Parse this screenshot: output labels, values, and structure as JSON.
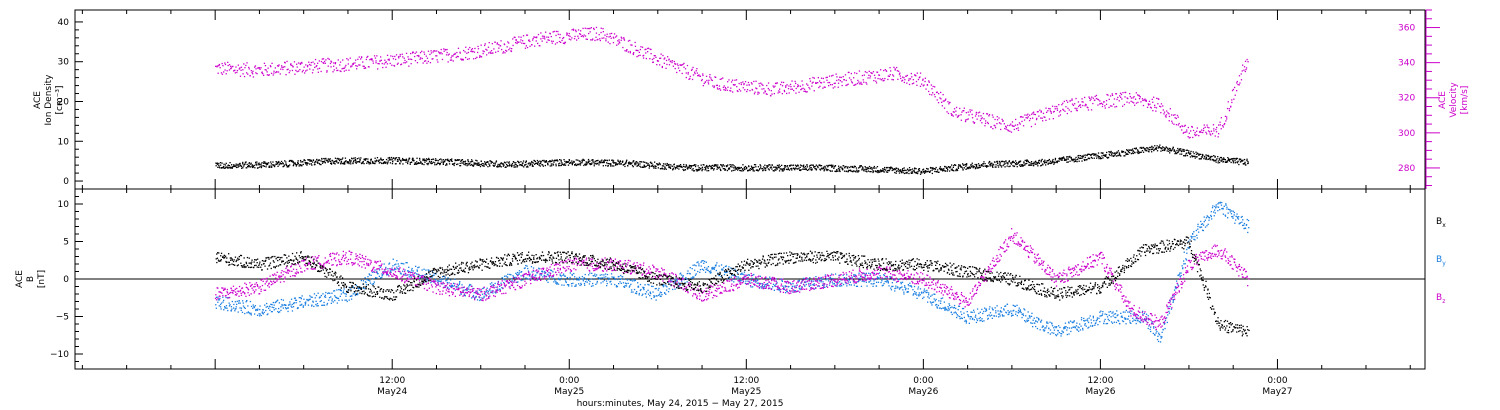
{
  "chart_data": [
    {
      "type": "scatter",
      "panel": "plasma",
      "left_axis": {
        "title_lines": [
          "ACE",
          "Ion Density",
          "[cm⁻³]"
        ],
        "ylim": [
          -2,
          43
        ],
        "ticks": [
          0,
          10,
          20,
          30,
          40
        ],
        "tick_labels": [
          "0",
          "10",
          "20",
          "30",
          "40"
        ]
      },
      "right_axis": {
        "title_lines": [
          "ACE",
          "Velocity",
          "[km/s]"
        ],
        "ylim": [
          268,
          370
        ],
        "ticks": [
          280,
          300,
          320,
          340,
          360
        ],
        "tick_labels": [
          "280",
          "300",
          "320",
          "340",
          "360"
        ],
        "color": "#cc00cc"
      },
      "series": [
        {
          "axis": "left",
          "color": "#000000",
          "t_hours": [
            0,
            4,
            8,
            12,
            16,
            20,
            24,
            28,
            32,
            36,
            40,
            44,
            48,
            52,
            56,
            60,
            62,
            64,
            66,
            68,
            70
          ],
          "values": [
            4,
            4.3,
            5.2,
            5.3,
            4.9,
            4.3,
            4.9,
            4.6,
            3.5,
            3.5,
            3.5,
            3.2,
            2.6,
            4.3,
            4.8,
            6.5,
            7.5,
            8.5,
            7,
            5.5,
            4.8
          ]
        },
        {
          "axis": "right",
          "color": "#cc00cc",
          "t_hours": [
            0,
            3,
            6,
            10,
            14,
            18,
            22,
            26,
            28,
            30,
            34,
            38,
            42,
            46,
            48,
            50,
            54,
            58,
            62,
            64,
            66,
            68,
            70
          ],
          "values": [
            337,
            336,
            338,
            340,
            343,
            347,
            354,
            357,
            350,
            342,
            328,
            325,
            330,
            334,
            330,
            312,
            304,
            316,
            320,
            316,
            300,
            302,
            343
          ]
        }
      ]
    },
    {
      "type": "scatter",
      "panel": "field",
      "left_axis": {
        "title_lines": [
          "ACE",
          "B",
          "[nT]"
        ],
        "ylim": [
          -12,
          12
        ],
        "ticks": [
          -10,
          -5,
          0,
          5,
          10
        ],
        "tick_labels": [
          "−10",
          "−5",
          "0",
          "5",
          "10"
        ]
      },
      "zero_line": true,
      "series": [
        {
          "name": "B",
          "subscript": "x",
          "color": "#000000",
          "t_hours": [
            0,
            3,
            6,
            9,
            12,
            15,
            18,
            21,
            24,
            27,
            30,
            33,
            36,
            39,
            42,
            45,
            48,
            51,
            54,
            57,
            60,
            63,
            66,
            68,
            70
          ],
          "values": [
            3,
            2,
            3,
            -1,
            -2,
            1,
            2,
            3,
            3,
            2,
            0,
            -1,
            2,
            3,
            3,
            2,
            2,
            1,
            0,
            -2,
            -1,
            4,
            5,
            -6,
            -7
          ]
        },
        {
          "name": "B",
          "subscript": "y",
          "color": "#1a7fe0",
          "t_hours": [
            0,
            3,
            6,
            9,
            12,
            15,
            18,
            21,
            24,
            27,
            30,
            33,
            36,
            39,
            42,
            45,
            48,
            51,
            54,
            57,
            60,
            63,
            64,
            66,
            68,
            70
          ],
          "values": [
            -3,
            -4,
            -3,
            -2,
            2,
            0,
            -2,
            1,
            0,
            0,
            -2,
            2,
            0,
            -1,
            0,
            0,
            -2,
            -5,
            -4,
            -7,
            -5,
            -5,
            -8,
            5,
            10,
            7
          ]
        },
        {
          "name": "B",
          "subscript": "z",
          "color": "#cc00cc",
          "t_hours": [
            0,
            3,
            6,
            9,
            12,
            15,
            18,
            21,
            24,
            27,
            30,
            33,
            36,
            39,
            42,
            45,
            48,
            51,
            54,
            57,
            60,
            62,
            64,
            66,
            68,
            70
          ],
          "values": [
            -2,
            -1,
            2,
            3,
            1,
            -1,
            -2,
            0,
            2,
            2,
            1,
            -2,
            0,
            -1,
            0,
            1,
            0,
            -3,
            6,
            0,
            3,
            -4,
            -6,
            2,
            4,
            0
          ]
        }
      ]
    }
  ],
  "x_axis": {
    "range_hours": [
      -9.5,
      82
    ],
    "ticks": [
      {
        "hour": 12,
        "time": "12:00",
        "date": "May24"
      },
      {
        "hour": 24,
        "time": "0:00",
        "date": "May25"
      },
      {
        "hour": 36,
        "time": "12:00",
        "date": "May25"
      },
      {
        "hour": 48,
        "time": "0:00",
        "date": "May26"
      },
      {
        "hour": 60,
        "time": "12:00",
        "date": "May26"
      },
      {
        "hour": 72,
        "time": "0:00",
        "date": "May27"
      }
    ],
    "title": "hours:minutes, May 24, 2015 − May 27, 2015"
  }
}
